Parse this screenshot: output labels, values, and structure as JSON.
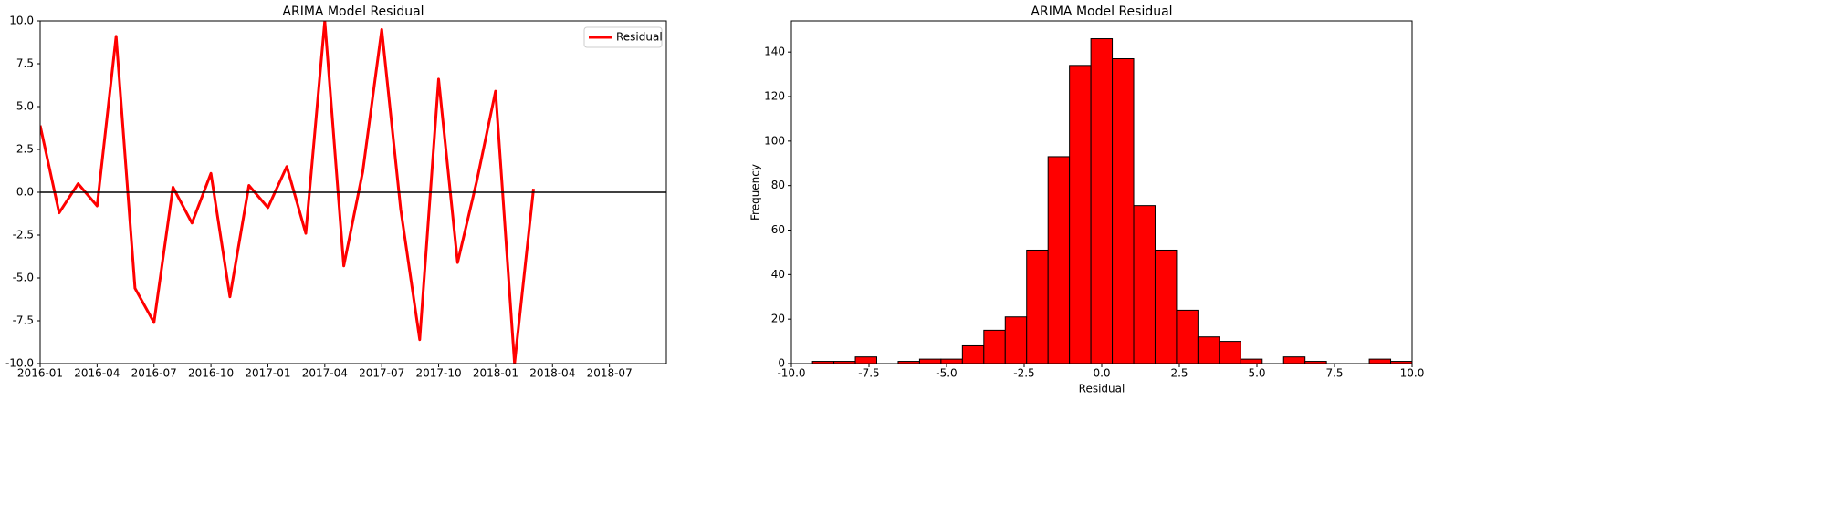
{
  "chart_data": [
    {
      "type": "line",
      "title": "ARIMA Model Residual",
      "x": [
        "2016-01",
        "2016-02",
        "2016-03",
        "2016-04",
        "2016-05",
        "2016-06",
        "2016-07",
        "2016-08",
        "2016-09",
        "2016-10",
        "2016-11",
        "2016-12",
        "2017-01",
        "2017-02",
        "2017-03",
        "2017-04",
        "2017-05",
        "2017-06",
        "2017-07",
        "2017-08",
        "2017-09",
        "2017-10",
        "2017-11",
        "2017-12",
        "2018-01",
        "2018-02",
        "2018-03"
      ],
      "series": [
        {
          "name": "Residual",
          "color": "#ff0000",
          "values": [
            3.9,
            -1.2,
            0.5,
            -0.8,
            9.1,
            -5.6,
            -7.6,
            0.3,
            -1.8,
            1.1,
            -6.1,
            0.4,
            -0.9,
            1.5,
            -2.4,
            10.0,
            -4.3,
            1.2,
            9.5,
            -1.0,
            -8.6,
            6.6,
            -4.1,
            0.6,
            5.9,
            -10.0,
            0.2
          ]
        }
      ],
      "xlim": [
        "2016-01",
        "2018-10"
      ],
      "xticks": [
        "2016-01",
        "2016-04",
        "2016-07",
        "2016-10",
        "2017-01",
        "2017-04",
        "2017-07",
        "2017-10",
        "2018-01",
        "2018-04",
        "2018-07"
      ],
      "ylim": [
        -10,
        10
      ],
      "yticks": [
        {
          "value": -10,
          "label": "-10.0"
        },
        {
          "value": -7.5,
          "label": "-7.5"
        },
        {
          "value": -5,
          "label": "-5.0"
        },
        {
          "value": -2.5,
          "label": "-2.5"
        },
        {
          "value": 0,
          "label": "0.0"
        },
        2.5,
        {
          "value": 5,
          "label": "5.0"
        },
        7.5,
        {
          "value": 10,
          "label": "10.0"
        }
      ],
      "reference_line": 0,
      "legend": "upper right"
    },
    {
      "type": "histogram",
      "title": "ARIMA Model Residual",
      "x_label": "Residual",
      "y_label": "Frequency",
      "bins": [
        -9.32,
        -8.63,
        -7.94,
        -7.25,
        -6.56,
        -5.87,
        -5.18,
        -4.49,
        -3.8,
        -3.11,
        -2.42,
        -1.73,
        -1.04,
        -0.35,
        0.34,
        1.03,
        1.72,
        2.41,
        3.1,
        3.79,
        4.48,
        5.17,
        5.86,
        6.55,
        7.24,
        7.93,
        8.62,
        9.31,
        10.0
      ],
      "values": [
        1,
        1,
        3,
        0,
        1,
        2,
        2,
        8,
        15,
        21,
        51,
        93,
        134,
        146,
        137,
        71,
        51,
        24,
        12,
        10,
        2,
        0,
        3,
        1,
        0,
        0,
        2,
        1
      ],
      "color": "#ff0000",
      "edge_color": "#000000",
      "xlim": [
        -10,
        10
      ],
      "xticks": [
        {
          "value": -10,
          "label": "-10.0"
        },
        -7.5,
        {
          "value": -5,
          "label": "-5.0"
        },
        -2.5,
        {
          "value": 0,
          "label": "0.0"
        },
        2.5,
        {
          "value": 5,
          "label": "5.0"
        },
        7.5,
        {
          "value": 10,
          "label": "10.0"
        }
      ],
      "ylim": [
        0,
        154
      ],
      "yticks": [
        0,
        20,
        40,
        60,
        80,
        100,
        120,
        140
      ]
    }
  ]
}
